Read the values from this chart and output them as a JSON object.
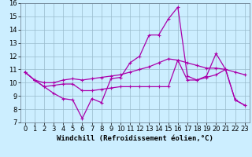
{
  "xlabel": "Windchill (Refroidissement éolien,°C)",
  "bg_color": "#cceeff",
  "line_color": "#aa00aa",
  "xlim": [
    -0.5,
    23.5
  ],
  "ylim": [
    7,
    16
  ],
  "yticks": [
    7,
    8,
    9,
    10,
    11,
    12,
    13,
    14,
    15,
    16
  ],
  "xticks": [
    0,
    1,
    2,
    3,
    4,
    5,
    6,
    7,
    8,
    9,
    10,
    11,
    12,
    13,
    14,
    15,
    16,
    17,
    18,
    19,
    20,
    21,
    22,
    23
  ],
  "line1_x": [
    0,
    1,
    2,
    3,
    4,
    5,
    6,
    7,
    8,
    9,
    10,
    11,
    12,
    13,
    14,
    15,
    16,
    17,
    18,
    19,
    20,
    21,
    22,
    23
  ],
  "line1_y": [
    10.8,
    10.2,
    9.7,
    9.2,
    8.8,
    8.7,
    7.3,
    8.8,
    8.5,
    10.3,
    10.4,
    11.5,
    12.0,
    13.6,
    13.6,
    14.8,
    15.7,
    10.5,
    10.2,
    10.4,
    10.6,
    11.0,
    8.7,
    8.3
  ],
  "line2_x": [
    0,
    1,
    2,
    3,
    4,
    5,
    6,
    7,
    8,
    9,
    10,
    11,
    12,
    13,
    14,
    15,
    16,
    17,
    18,
    19,
    20,
    21,
    22,
    23
  ],
  "line2_y": [
    10.8,
    10.2,
    10.0,
    10.0,
    10.2,
    10.3,
    10.2,
    10.3,
    10.4,
    10.5,
    10.6,
    10.8,
    11.0,
    11.2,
    11.5,
    11.8,
    11.7,
    11.5,
    11.3,
    11.1,
    11.1,
    11.0,
    10.8,
    10.6
  ],
  "line3_x": [
    0,
    1,
    2,
    3,
    4,
    5,
    6,
    7,
    8,
    9,
    10,
    11,
    12,
    13,
    14,
    15,
    16,
    17,
    18,
    19,
    20,
    21,
    22,
    23
  ],
  "line3_y": [
    10.8,
    10.2,
    9.7,
    9.8,
    9.9,
    9.9,
    9.4,
    9.4,
    9.5,
    9.6,
    9.7,
    9.7,
    9.7,
    9.7,
    9.7,
    9.7,
    11.7,
    10.2,
    10.2,
    10.5,
    12.2,
    11.0,
    8.7,
    8.3
  ],
  "grid_color": "#99bbcc",
  "font_size": 6,
  "marker": "+",
  "xlabel_fontsize": 6.5
}
